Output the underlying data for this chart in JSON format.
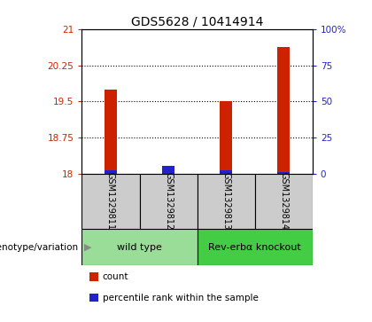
{
  "title": "GDS5628 / 10414914",
  "samples": [
    "GSM1329811",
    "GSM1329812",
    "GSM1329813",
    "GSM1329814"
  ],
  "count_values": [
    19.75,
    18.1,
    19.5,
    20.62
  ],
  "percentile_values": [
    2.5,
    5.5,
    2.5,
    1.5
  ],
  "ylim_left": [
    18,
    21
  ],
  "ylim_right": [
    0,
    100
  ],
  "yticks_left": [
    18,
    18.75,
    19.5,
    20.25,
    21
  ],
  "ytick_labels_left": [
    "18",
    "18.75",
    "19.5",
    "20.25",
    "21"
  ],
  "yticks_right": [
    0,
    25,
    50,
    75,
    100
  ],
  "ytick_labels_right": [
    "0",
    "25",
    "50",
    "75",
    "100%"
  ],
  "count_color": "#cc2200",
  "percentile_color": "#2222cc",
  "groups": [
    {
      "label": "wild type",
      "indices": [
        0,
        1
      ],
      "color": "#99dd99"
    },
    {
      "label": "Rev-erbα knockout",
      "indices": [
        2,
        3
      ],
      "color": "#44cc44"
    }
  ],
  "group_row_label": "genotype/variation",
  "legend_items": [
    {
      "label": "count",
      "color": "#cc2200"
    },
    {
      "label": "percentile rank within the sample",
      "color": "#2222cc"
    }
  ],
  "background_color": "#ffffff",
  "sample_cell_color": "#cccccc",
  "title_fontsize": 10,
  "tick_fontsize": 7.5,
  "sample_fontsize": 7,
  "group_fontsize": 8,
  "legend_fontsize": 7.5
}
